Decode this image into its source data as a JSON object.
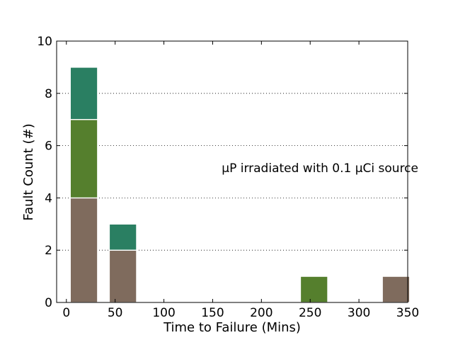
{
  "chart_data": {
    "type": "bar",
    "stacked": true,
    "xlabel": "Time  to Failure (Mins)",
    "ylabel": "Fault Count (#)",
    "annotation": "μP irradiated with 0.1 μCi source",
    "xlim": [
      -10,
      350
    ],
    "ylim": [
      0,
      10
    ],
    "xticks": [
      0,
      50,
      100,
      150,
      200,
      250,
      300,
      350
    ],
    "yticks": [
      0,
      2,
      4,
      6,
      8,
      10
    ],
    "grid": "horizontal-dotted",
    "bin_width": 28,
    "bins": [
      {
        "x_start": 4,
        "segments": [
          {
            "value": 4,
            "color": "#7f6b5d"
          },
          {
            "value": 3,
            "color": "#557f2d"
          },
          {
            "value": 2,
            "color": "#2a7f62"
          }
        ]
      },
      {
        "x_start": 44,
        "segments": [
          {
            "value": 2,
            "color": "#7f6b5d"
          },
          {
            "value": 1,
            "color": "#2a7f62"
          }
        ]
      },
      {
        "x_start": 240,
        "segments": [
          {
            "value": 1,
            "color": "#557f2d"
          }
        ]
      },
      {
        "x_start": 324,
        "segments": [
          {
            "value": 1,
            "color": "#7f6b5d"
          }
        ]
      }
    ]
  }
}
